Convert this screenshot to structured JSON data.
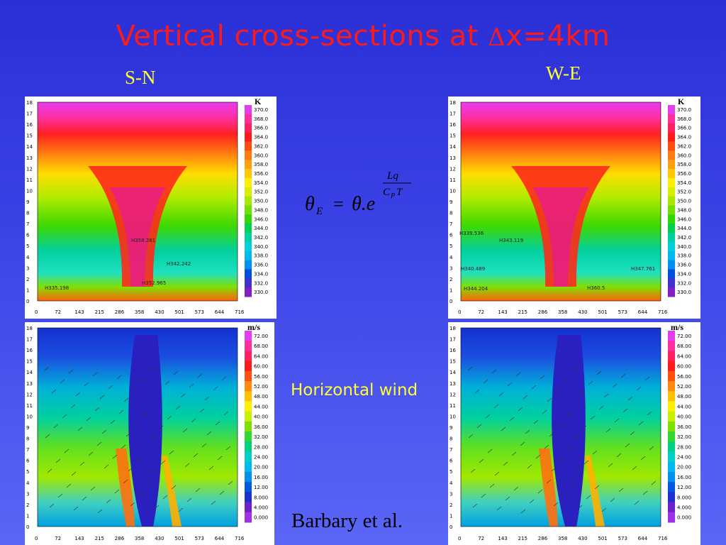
{
  "slide": {
    "title_prefix": "Vertical cross-sections at ",
    "title_delta": "Δ",
    "title_suffix": "x=4km",
    "label_sn": "S-N",
    "label_we": "W-E",
    "horizontal_wind_label": "Horizontal wind",
    "credit": "Barbary et al."
  },
  "formula": {
    "lhs": "θ",
    "lhs_sub": "E",
    "equals": "=",
    "rhs": "θ.e",
    "exp_num": "Lq",
    "exp_den_c": "C",
    "exp_den_sub": "P",
    "exp_den_t": "T"
  },
  "axes": {
    "y_ticks": [
      "0",
      "1",
      "2",
      "3",
      "4",
      "5",
      "6",
      "7",
      "8",
      "9",
      "10",
      "11",
      "12",
      "13",
      "14",
      "15",
      "16",
      "17",
      "18"
    ],
    "x_ticks": [
      "0",
      "72",
      "143",
      "215",
      "286",
      "358",
      "430",
      "501",
      "573",
      "644",
      "716"
    ]
  },
  "theta_colorbar": {
    "unit": "K",
    "labels": [
      "370.0",
      "368.0",
      "366.0",
      "364.0",
      "362.0",
      "360.0",
      "358.0",
      "356.0",
      "354.0",
      "352.0",
      "350.0",
      "348.0",
      "346.0",
      "344.0",
      "342.0",
      "340.0",
      "338.0",
      "336.0",
      "334.0",
      "332.0",
      "330.0"
    ],
    "colors": [
      "#e63cf0",
      "#ff2fa0",
      "#ff2060",
      "#ff1a1a",
      "#ff4a10",
      "#ff7a10",
      "#ffa010",
      "#ffc800",
      "#ffef00",
      "#d8f000",
      "#a8e800",
      "#70e000",
      "#30d800",
      "#00d050",
      "#00d0a0",
      "#00d0d8",
      "#00b8f0",
      "#0090f0",
      "#0050e0",
      "#4030d0",
      "#8020c0"
    ]
  },
  "wind_colorbar": {
    "unit": "m/s",
    "labels": [
      "72.00",
      "68.00",
      "64.00",
      "60.00",
      "56.00",
      "52.00",
      "48.00",
      "44.00",
      "40.00",
      "36.00",
      "32.00",
      "28.00",
      "24.00",
      "20.00",
      "16.00",
      "12.00",
      "8.000",
      "4.000",
      "0.000"
    ],
    "colors": [
      "#e63cf0",
      "#ff2fa0",
      "#ff2060",
      "#ff1a1a",
      "#ff5010",
      "#ff8a10",
      "#ffc000",
      "#ffef00",
      "#c8f000",
      "#80e000",
      "#30d830",
      "#00d080",
      "#00d0c8",
      "#00b8f0",
      "#0090f0",
      "#0058e0",
      "#2030d0",
      "#7020c8",
      "#a030e8"
    ]
  },
  "annotations": {
    "sn_theta": [
      "358.261",
      "342.242",
      "352.965",
      "335.198"
    ],
    "we_theta": [
      "339.536",
      "343.119",
      "340.489",
      "344.204",
      "347.761",
      "360.5"
    ]
  }
}
